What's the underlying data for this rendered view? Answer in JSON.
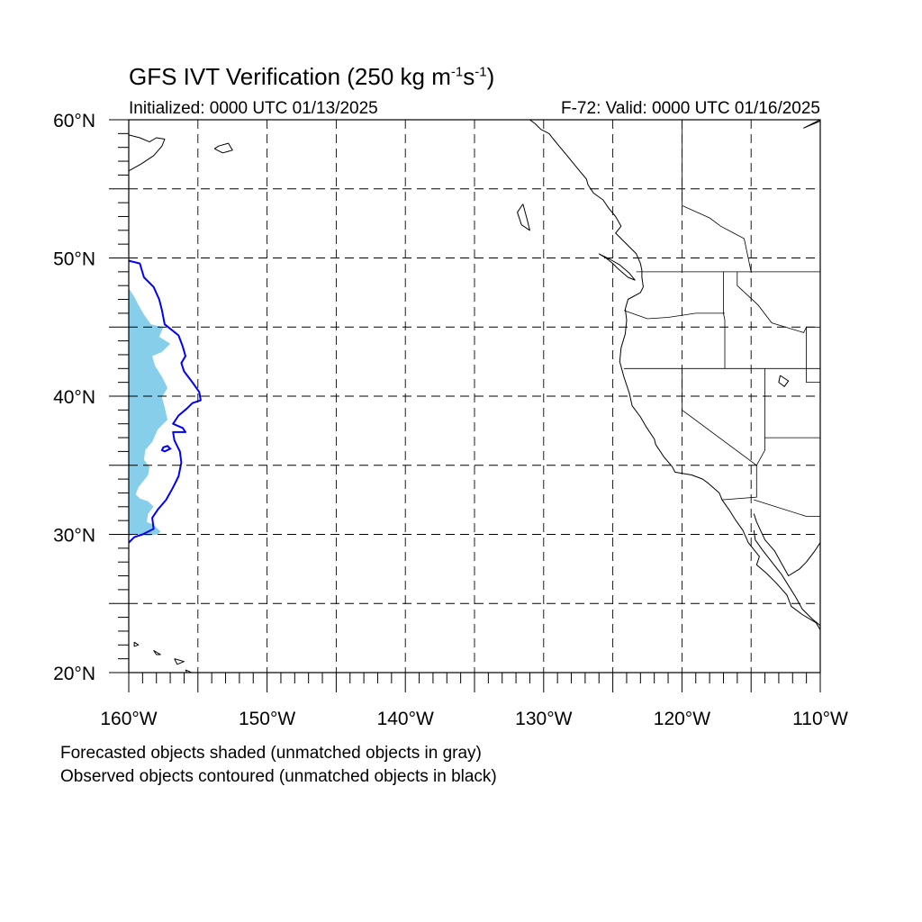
{
  "title": {
    "main": "GFS IVT Verification (250 kg m",
    "sup1": "-1",
    "mid": "s",
    "sup2": "-1",
    "end": ")"
  },
  "subtitle": {
    "left": "Initialized: 0000 UTC 01/13/2025",
    "right": "F-72: Valid: 0000 UTC 01/16/2025"
  },
  "notes": {
    "line1": "Forecasted objects shaded (unmatched objects in gray)",
    "line2": "Observed objects contoured (unmatched objects in black)"
  },
  "map": {
    "lon_range": [
      -160,
      -110
    ],
    "lat_range": [
      20,
      60
    ],
    "grid_lon_step": 5,
    "grid_lat_step": 5,
    "lon_labels": [
      {
        "lon": -160,
        "text": "160°W"
      },
      {
        "lon": -150,
        "text": "150°W"
      },
      {
        "lon": -140,
        "text": "140°W"
      },
      {
        "lon": -130,
        "text": "130°W"
      },
      {
        "lon": -120,
        "text": "120°W"
      },
      {
        "lon": -110,
        "text": "110°W"
      }
    ],
    "lat_labels": [
      {
        "lat": 60,
        "text": "60°N"
      },
      {
        "lat": 50,
        "text": "50°N"
      },
      {
        "lat": 40,
        "text": "40°N"
      },
      {
        "lat": 30,
        "text": "30°N"
      },
      {
        "lat": 20,
        "text": "20°N"
      }
    ],
    "colors": {
      "forecast_fill": "#87ceeb",
      "observed_contour": "#0000ff",
      "coast": "#000000",
      "grid": "#000000"
    },
    "forecast_object": [
      [
        -160,
        47.8
      ],
      [
        -159.6,
        47.2
      ],
      [
        -159.3,
        46.6
      ],
      [
        -158.9,
        45.9
      ],
      [
        -158.4,
        45.2
      ],
      [
        -157.5,
        45.0
      ],
      [
        -157.8,
        44.3
      ],
      [
        -157.0,
        43.8
      ],
      [
        -157.6,
        43.2
      ],
      [
        -158.3,
        42.9
      ],
      [
        -158.1,
        42.2
      ],
      [
        -157.6,
        41.4
      ],
      [
        -157.2,
        40.6
      ],
      [
        -157.6,
        39.9
      ],
      [
        -157.4,
        39.2
      ],
      [
        -157.2,
        38.3
      ],
      [
        -157.9,
        37.6
      ],
      [
        -158.3,
        36.7
      ],
      [
        -158.8,
        36.1
      ],
      [
        -158.9,
        35.4
      ],
      [
        -158.5,
        34.9
      ],
      [
        -158.6,
        34.3
      ],
      [
        -159.0,
        33.8
      ],
      [
        -159.3,
        33.4
      ],
      [
        -159.5,
        32.9
      ],
      [
        -159.2,
        32.6
      ],
      [
        -158.6,
        32.4
      ],
      [
        -158.2,
        32.0
      ],
      [
        -158.6,
        31.5
      ],
      [
        -158.7,
        30.9
      ],
      [
        -158.2,
        30.7
      ],
      [
        -157.7,
        30.2
      ],
      [
        -157.9,
        30.0
      ],
      [
        -158.6,
        29.9
      ],
      [
        -159.4,
        30.0
      ],
      [
        -160,
        29.9
      ]
    ],
    "observed_object": [
      [
        -160,
        49.8
      ],
      [
        -159.2,
        49.6
      ],
      [
        -158.9,
        48.6
      ],
      [
        -158.2,
        47.9
      ],
      [
        -157.8,
        47.0
      ],
      [
        -157.6,
        46.2
      ],
      [
        -157.4,
        45.2
      ],
      [
        -156.9,
        44.8
      ],
      [
        -156.4,
        44.4
      ],
      [
        -156.1,
        43.6
      ],
      [
        -155.9,
        42.9
      ],
      [
        -156.2,
        42.4
      ],
      [
        -156.0,
        41.8
      ],
      [
        -155.4,
        41.0
      ],
      [
        -154.9,
        40.3
      ],
      [
        -154.8,
        39.7
      ],
      [
        -155.4,
        39.5
      ],
      [
        -155.8,
        39.1
      ],
      [
        -156.4,
        38.6
      ],
      [
        -156.8,
        38.0
      ],
      [
        -156.1,
        37.7
      ],
      [
        -155.9,
        37.4
      ],
      [
        -156.8,
        37.4
      ],
      [
        -156.7,
        36.8
      ],
      [
        -156.3,
        36.0
      ],
      [
        -156.2,
        35.2
      ],
      [
        -156.4,
        34.2
      ],
      [
        -156.8,
        33.4
      ],
      [
        -157.3,
        32.5
      ],
      [
        -157.9,
        31.8
      ],
      [
        -158.3,
        31.2
      ],
      [
        -158.2,
        30.4
      ],
      [
        -159.0,
        30.0
      ],
      [
        -159.6,
        29.8
      ],
      [
        -160,
        29.4
      ]
    ],
    "observed_small": [
      [
        -157.5,
        36.3
      ],
      [
        -157.2,
        36.4
      ],
      [
        -157.0,
        36.2
      ],
      [
        -157.4,
        36.0
      ],
      [
        -157.6,
        36.1
      ]
    ],
    "coastlines": [
      [
        [
          -131.0,
          60.0
        ],
        [
          -130.6,
          59.7
        ],
        [
          -130.2,
          59.3
        ],
        [
          -129.6,
          59.0
        ],
        [
          -129.3,
          58.6
        ],
        [
          -128.8,
          58.0
        ],
        [
          -128.3,
          57.4
        ],
        [
          -127.9,
          56.9
        ],
        [
          -127.4,
          56.3
        ],
        [
          -126.9,
          55.7
        ],
        [
          -126.8,
          55.3
        ],
        [
          -126.4,
          54.7
        ],
        [
          -125.7,
          54.2
        ],
        [
          -125.3,
          53.6
        ],
        [
          -124.8,
          53.0
        ],
        [
          -124.4,
          52.3
        ],
        [
          -124.8,
          51.8
        ],
        [
          -124.1,
          51.1
        ],
        [
          -123.3,
          50.3
        ],
        [
          -123.0,
          49.6
        ],
        [
          -122.9,
          49.1
        ],
        [
          -122.9,
          48.6
        ],
        [
          -122.8,
          47.9
        ],
        [
          -123.0,
          47.5
        ],
        [
          -123.9,
          47.0
        ],
        [
          -124.1,
          46.3
        ],
        [
          -124.0,
          45.5
        ],
        [
          -124.1,
          44.5
        ],
        [
          -124.4,
          43.5
        ],
        [
          -124.5,
          42.5
        ],
        [
          -124.2,
          41.4
        ],
        [
          -123.8,
          40.2
        ],
        [
          -123.6,
          39.3
        ],
        [
          -123.0,
          38.5
        ],
        [
          -122.6,
          37.8
        ],
        [
          -122.0,
          36.9
        ],
        [
          -121.9,
          36.5
        ],
        [
          -121.3,
          35.6
        ],
        [
          -120.7,
          34.9
        ],
        [
          -120.5,
          34.5
        ],
        [
          -119.3,
          34.3
        ],
        [
          -118.5,
          34.0
        ],
        [
          -118.1,
          33.7
        ],
        [
          -117.3,
          33.0
        ],
        [
          -117.1,
          32.5
        ],
        [
          -116.6,
          31.8
        ],
        [
          -116.1,
          31.0
        ],
        [
          -115.6,
          30.3
        ],
        [
          -115.2,
          29.4
        ],
        [
          -114.4,
          28.4
        ],
        [
          -114.6,
          27.8
        ],
        [
          -113.9,
          27.2
        ],
        [
          -113.2,
          26.5
        ],
        [
          -112.4,
          25.6
        ],
        [
          -112.1,
          24.8
        ],
        [
          -111.3,
          24.2
        ],
        [
          -110.3,
          23.6
        ],
        [
          -110.0,
          23.1
        ]
      ],
      [
        [
          -110.0,
          29.4
        ],
        [
          -110.4,
          28.8
        ],
        [
          -111.0,
          28.0
        ],
        [
          -111.5,
          27.5
        ],
        [
          -112.3,
          27.0
        ],
        [
          -112.8,
          27.9
        ],
        [
          -113.3,
          28.8
        ],
        [
          -114.0,
          29.6
        ],
        [
          -114.6,
          30.9
        ],
        [
          -114.8,
          31.5
        ]
      ],
      [
        [
          -110.0,
          23.4
        ],
        [
          -110.6,
          23.9
        ],
        [
          -111.3,
          24.6
        ],
        [
          -111.8,
          25.5
        ],
        [
          -112.3,
          26.3
        ],
        [
          -112.8,
          27.1
        ],
        [
          -113.5,
          28.0
        ],
        [
          -114.2,
          28.9
        ],
        [
          -114.7,
          29.6
        ],
        [
          -114.8,
          30.3
        ]
      ],
      [
        [
          -126.0,
          50.3
        ],
        [
          -125.5,
          50.0
        ],
        [
          -125.0,
          49.6
        ],
        [
          -124.6,
          49.2
        ],
        [
          -123.9,
          48.6
        ],
        [
          -123.4,
          48.4
        ],
        [
          -123.8,
          48.9
        ],
        [
          -124.5,
          49.5
        ],
        [
          -125.2,
          49.9
        ],
        [
          -126.0,
          50.3
        ]
      ],
      [
        [
          -131.5,
          53.9
        ],
        [
          -131.9,
          53.3
        ],
        [
          -131.6,
          52.4
        ],
        [
          -131.0,
          52.0
        ],
        [
          -131.2,
          52.8
        ],
        [
          -131.5,
          53.9
        ]
      ],
      [
        [
          -160.0,
          58.9
        ],
        [
          -159.2,
          58.7
        ],
        [
          -158.5,
          58.4
        ],
        [
          -158.0,
          58.7
        ],
        [
          -157.4,
          58.6
        ],
        [
          -157.6,
          58.1
        ],
        [
          -158.2,
          57.4
        ],
        [
          -159.1,
          56.8
        ],
        [
          -160.0,
          56.3
        ]
      ],
      [
        [
          -153.8,
          57.9
        ],
        [
          -153.2,
          57.6
        ],
        [
          -152.5,
          57.8
        ],
        [
          -152.8,
          58.3
        ],
        [
          -153.5,
          58.1
        ],
        [
          -153.8,
          57.9
        ]
      ],
      [
        [
          -110.0,
          59.9
        ],
        [
          -111.2,
          59.4
        ],
        [
          -110.6,
          59.7
        ],
        [
          -110.0,
          60.0
        ]
      ],
      [
        [
          -159.6,
          22.2
        ],
        [
          -159.3,
          22.0
        ],
        [
          -159.6,
          21.9
        ],
        [
          -159.6,
          22.2
        ]
      ],
      [
        [
          -158.2,
          21.6
        ],
        [
          -157.7,
          21.3
        ],
        [
          -158.0,
          21.3
        ],
        [
          -158.2,
          21.6
        ]
      ],
      [
        [
          -156.7,
          21.0
        ],
        [
          -156.0,
          20.8
        ],
        [
          -156.5,
          20.6
        ],
        [
          -156.7,
          21.0
        ]
      ],
      [
        [
          -155.9,
          20.2
        ],
        [
          -155.0,
          19.8
        ],
        [
          -155.6,
          19.6
        ],
        [
          -155.9,
          20.2
        ]
      ]
    ],
    "borders": [
      [
        [
          -123.3,
          49.0
        ],
        [
          -110.0,
          49.0
        ]
      ],
      [
        [
          -124.2,
          46.2
        ],
        [
          -122.5,
          45.6
        ],
        [
          -121.0,
          45.7
        ],
        [
          -119.0,
          46.0
        ],
        [
          -116.9,
          46.0
        ]
      ],
      [
        [
          -124.2,
          42.0
        ],
        [
          -110.0,
          42.0
        ]
      ],
      [
        [
          -120.0,
          42.0
        ],
        [
          -120.0,
          39.0
        ],
        [
          -114.6,
          35.0
        ]
      ],
      [
        [
          -117.0,
          49.0
        ],
        [
          -117.0,
          46.0
        ],
        [
          -116.9,
          45.5
        ],
        [
          -116.9,
          42.0
        ]
      ],
      [
        [
          -114.0,
          42.0
        ],
        [
          -114.0,
          37.0
        ],
        [
          -110.0,
          37.0
        ]
      ],
      [
        [
          -114.0,
          37.0
        ],
        [
          -114.0,
          36.1
        ],
        [
          -114.6,
          35.0
        ],
        [
          -114.6,
          32.7
        ],
        [
          -117.1,
          32.5
        ]
      ],
      [
        [
          -114.8,
          32.5
        ],
        [
          -111.0,
          31.3
        ],
        [
          -110.0,
          31.3
        ]
      ],
      [
        [
          -111.0,
          45.0
        ],
        [
          -110.0,
          45.0
        ]
      ],
      [
        [
          -111.0,
          45.0
        ],
        [
          -111.0,
          41.0
        ],
        [
          -110.0,
          41.0
        ]
      ],
      [
        [
          -116.0,
          49.0
        ],
        [
          -116.0,
          48.0
        ],
        [
          -114.5,
          46.6
        ],
        [
          -113.5,
          45.3
        ],
        [
          -111.2,
          44.6
        ],
        [
          -111.0,
          45.0
        ]
      ],
      [
        [
          -120.0,
          60.0
        ],
        [
          -120.0,
          53.8
        ],
        [
          -118.0,
          52.9
        ],
        [
          -117.2,
          52.3
        ],
        [
          -115.5,
          51.4
        ],
        [
          -115.0,
          49.0
        ]
      ]
    ],
    "lakes": [
      [
        [
          -112.9,
          41.5
        ],
        [
          -112.3,
          41.1
        ],
        [
          -112.6,
          40.7
        ],
        [
          -113.0,
          41.0
        ],
        [
          -112.9,
          41.5
        ]
      ]
    ]
  }
}
